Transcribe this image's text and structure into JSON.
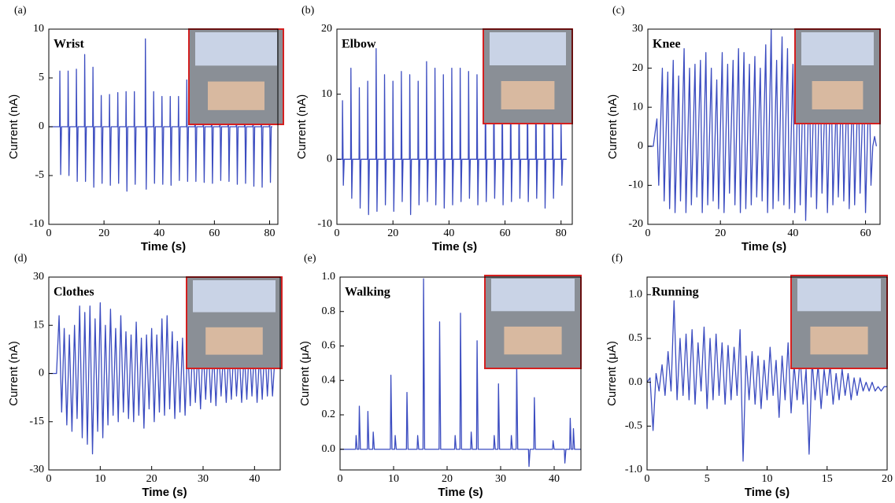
{
  "chart_data": [
    {
      "type": "line",
      "panel": "(a)",
      "title": "Wrist",
      "x_label": "Time  (s)",
      "y_label": "Current  (nA)",
      "color": "#3b4cc0",
      "xlim": [
        0,
        83
      ],
      "ylim": [
        -10,
        10
      ],
      "xticks": [
        0,
        20,
        40,
        60,
        80
      ],
      "yticks": [
        -10,
        -5,
        0,
        5,
        10
      ],
      "x": [
        0,
        3.9,
        4,
        4.3,
        4.6,
        6.9,
        7,
        7.3,
        7.6,
        9.9,
        10,
        10.3,
        10.6,
        12.9,
        13,
        13.3,
        13.6,
        15.9,
        16,
        16.3,
        16.6,
        18.9,
        19,
        19.3,
        19.6,
        21.9,
        22,
        22.3,
        22.6,
        24.9,
        25,
        25.3,
        25.6,
        27.9,
        28,
        28.3,
        28.6,
        30.9,
        31,
        31.3,
        31.6,
        34.9,
        35,
        35.3,
        35.6,
        37.9,
        38,
        38.3,
        38.6,
        40.9,
        41,
        41.3,
        41.6,
        43.9,
        44,
        44.3,
        44.6,
        46.9,
        47,
        47.3,
        47.6,
        49.9,
        50,
        50.3,
        50.6,
        52.9,
        53,
        53.3,
        53.6,
        55.9,
        56,
        56.3,
        56.6,
        58.9,
        59,
        59.3,
        59.6,
        61.9,
        62,
        62.3,
        62.6,
        64.9,
        65,
        65.3,
        65.6,
        67.9,
        68,
        68.3,
        68.6,
        70.9,
        71,
        71.3,
        71.6,
        73.9,
        74,
        74.3,
        74.6,
        76.9,
        77,
        77.3,
        77.6,
        79.9,
        80,
        80.3,
        80.6,
        81
      ],
      "values": [
        0,
        0,
        5.7,
        -4.9,
        0,
        0,
        5.7,
        -5,
        0,
        0,
        5.9,
        -5.6,
        0,
        0,
        7.4,
        -5.6,
        0,
        0,
        6.1,
        -6.2,
        0,
        0,
        3.2,
        -5.8,
        0,
        0,
        3.3,
        -6,
        0,
        0,
        3.5,
        -5.8,
        0,
        0,
        3.6,
        -6.6,
        0,
        0,
        3.6,
        -5.9,
        0,
        0,
        9,
        -6.4,
        0,
        0,
        3.6,
        -5.8,
        0,
        0,
        3.1,
        -5.9,
        0,
        0,
        3.1,
        -6,
        0,
        0,
        3.1,
        -5.5,
        0,
        0,
        4.8,
        -5.6,
        0,
        0,
        3,
        -5.6,
        0,
        0,
        3,
        -5.7,
        0,
        0,
        3,
        -5.8,
        0,
        0,
        3,
        -5.5,
        0,
        0,
        3,
        -5.6,
        0,
        0,
        3,
        -5.9,
        0,
        0,
        3,
        -5.8,
        0,
        0,
        3,
        -6.1,
        0,
        0,
        3,
        -6.2,
        0,
        0,
        3,
        -5.7,
        0,
        0
      ]
    },
    {
      "type": "line",
      "panel": "(b)",
      "title": "Elbow",
      "x_label": "Time (s)",
      "y_label": "Current  (nA)",
      "color": "#3b4cc0",
      "xlim": [
        0,
        84
      ],
      "ylim": [
        -10,
        20
      ],
      "xticks": [
        0,
        20,
        40,
        60,
        80
      ],
      "yticks": [
        -10,
        0,
        10,
        20
      ],
      "x": [
        0,
        1.9,
        2,
        2.3,
        2.6,
        4.9,
        5,
        5.3,
        5.6,
        7.9,
        8,
        8.3,
        8.6,
        10.9,
        11,
        11.3,
        11.6,
        13.9,
        14,
        14.3,
        14.6,
        16.9,
        17,
        17.3,
        17.6,
        19.9,
        20,
        20.3,
        20.6,
        22.9,
        23,
        23.3,
        23.6,
        25.9,
        26,
        26.3,
        26.6,
        28.9,
        29,
        29.3,
        29.6,
        31.9,
        32,
        32.3,
        32.6,
        34.9,
        35,
        35.3,
        35.6,
        37.9,
        38,
        38.3,
        38.6,
        40.9,
        41,
        41.3,
        41.6,
        43.9,
        44,
        44.3,
        44.6,
        46.9,
        47,
        47.3,
        47.6,
        49.9,
        50,
        50.3,
        50.6,
        52.9,
        53,
        53.3,
        53.6,
        55.9,
        56,
        56.3,
        56.6,
        58.9,
        59,
        59.3,
        59.6,
        61.9,
        62,
        62.3,
        62.6,
        64.9,
        65,
        65.3,
        65.6,
        67.9,
        68,
        68.3,
        68.6,
        70.9,
        71,
        71.3,
        71.6,
        73.9,
        74,
        74.3,
        74.6,
        76.9,
        77,
        77.3,
        77.6,
        79.9,
        80,
        80.3,
        80.6,
        82
      ],
      "values": [
        0,
        0,
        9,
        -4,
        0,
        0,
        14,
        -6,
        0,
        0,
        11,
        -7.5,
        0,
        0,
        12,
        -8.5,
        0,
        0,
        17,
        -8,
        0,
        0,
        13,
        -7,
        0,
        0,
        12,
        -8,
        0,
        0,
        13.5,
        -6.5,
        0,
        0,
        13,
        -8.5,
        0,
        0,
        12,
        -7,
        0,
        0,
        15,
        -6.5,
        0,
        0,
        14,
        -7,
        0,
        0,
        13,
        -7.5,
        0,
        0,
        14,
        -7,
        0,
        0,
        14,
        -6.5,
        0,
        0,
        13.5,
        -6,
        0,
        0,
        13,
        -7,
        0,
        0,
        13,
        -6.5,
        0,
        0,
        14,
        -6,
        0,
        0,
        13,
        -7,
        0,
        0,
        13,
        -6.5,
        0,
        0,
        13,
        -6,
        0,
        0,
        13,
        -6.5,
        0,
        0,
        13,
        -6,
        0,
        0,
        13,
        -7.5,
        0,
        0,
        9,
        -6,
        0,
        0,
        6,
        -4,
        0,
        0
      ]
    },
    {
      "type": "line",
      "panel": "(c)",
      "title": "Knee",
      "x_label": "Time (s)",
      "y_label": "Current  (nA)",
      "color": "#3b4cc0",
      "xlim": [
        0,
        64
      ],
      "ylim": [
        -20,
        30
      ],
      "xticks": [
        0,
        20,
        40,
        60
      ],
      "yticks": [
        -20,
        -10,
        0,
        10,
        20,
        30
      ],
      "x": [
        0,
        1.5,
        2.5,
        3,
        4,
        4.5,
        5.5,
        6,
        7,
        7.5,
        8.5,
        9,
        10,
        10.5,
        11.5,
        12,
        13,
        13.5,
        14.5,
        15,
        16,
        16.5,
        17.5,
        18,
        19,
        19.5,
        20.5,
        21,
        22,
        22.5,
        23.5,
        24,
        25,
        25.5,
        26.5,
        27,
        28,
        28.5,
        29.5,
        30,
        31,
        31.5,
        32.5,
        33,
        34,
        34.5,
        35.5,
        36,
        37,
        37.5,
        38.5,
        39,
        40,
        40.5,
        41.5,
        42,
        43,
        43.5,
        44.5,
        45,
        46,
        46.5,
        47.5,
        48,
        49,
        49.5,
        50.5,
        51,
        52,
        52.5,
        53.5,
        54,
        55,
        55.5,
        56.5,
        57,
        58,
        58.5,
        59.5,
        60,
        61,
        61.5,
        62,
        62.5,
        63
      ],
      "values": [
        0,
        0,
        7,
        -10,
        20,
        -14,
        19,
        -16,
        22,
        -17,
        18,
        -14,
        25,
        -17,
        20,
        -15,
        21,
        -13,
        22,
        -17,
        24,
        -15,
        20,
        -14,
        17,
        -16,
        24,
        -17,
        21,
        -12,
        22,
        -15,
        25,
        -17,
        24,
        -16,
        21,
        -15,
        23,
        -13,
        20,
        -14,
        26,
        -17,
        30,
        -16,
        22,
        -14,
        28,
        -15,
        25,
        -16,
        21,
        -17,
        20,
        -15,
        24,
        -19,
        19,
        -13,
        22,
        -16,
        23,
        -12,
        17,
        -17,
        22,
        -15,
        13,
        -13,
        19,
        -14,
        18,
        -16,
        17,
        -15,
        18,
        -12,
        18,
        -17,
        19,
        -10,
        0,
        2.5,
        0
      ]
    },
    {
      "type": "line",
      "panel": "(d)",
      "title": "Clothes",
      "x_label": "Time (s)",
      "y_label": "Current  (nA)",
      "color": "#3b4cc0",
      "xlim": [
        0,
        45
      ],
      "ylim": [
        -30,
        30
      ],
      "xticks": [
        0,
        10,
        20,
        30,
        40
      ],
      "yticks": [
        -30,
        -15,
        0,
        15,
        30
      ],
      "x": [
        0,
        1.5,
        2,
        2.5,
        3,
        3.5,
        4,
        4.5,
        5,
        5.5,
        6,
        6.5,
        7,
        7.5,
        8,
        8.5,
        9,
        9.5,
        10,
        10.5,
        11,
        11.5,
        12,
        12.5,
        13,
        13.5,
        14,
        14.5,
        15,
        15.5,
        16,
        16.5,
        17,
        17.5,
        18,
        18.5,
        19,
        19.5,
        20,
        20.5,
        21,
        21.5,
        22,
        22.5,
        23,
        23.5,
        24,
        24.5,
        25,
        25.5,
        26,
        26.5,
        27,
        27.5,
        28,
        28.5,
        29,
        29.5,
        30,
        30.5,
        31,
        31.5,
        32,
        32.5,
        33,
        33.5,
        34,
        34.5,
        35,
        35.5,
        36,
        36.5,
        37,
        37.5,
        38,
        38.5,
        39,
        39.5,
        40,
        40.5,
        41,
        41.5,
        42,
        42.5,
        43,
        43.5,
        44
      ],
      "values": [
        0,
        0,
        18,
        -12,
        14,
        -16,
        12,
        -18,
        15,
        -14,
        21,
        -20,
        19,
        -22,
        21,
        -25,
        17,
        -18,
        22,
        -20,
        15,
        -16,
        20,
        -13,
        14,
        -15,
        18,
        -12,
        13,
        -14,
        12,
        -15,
        16,
        -13,
        11,
        -17,
        12,
        -11,
        14,
        -15,
        12,
        -12,
        17,
        -13,
        18,
        -11,
        13,
        -14,
        10,
        -12,
        11,
        -13,
        9,
        -10,
        10,
        -9,
        8,
        -11,
        9,
        -8,
        10,
        -9,
        8,
        -10,
        9,
        -7,
        8,
        -9,
        7,
        -8,
        9,
        -7,
        8,
        -9,
        7,
        -8,
        9,
        -7,
        8,
        -9,
        7,
        -8,
        9,
        -7,
        8,
        -7,
        6
      ]
    },
    {
      "type": "line",
      "panel": "(e)",
      "title": "Walking",
      "x_label": "Time (s)",
      "y_label": "Current  (μA)",
      "color": "#3b4cc0",
      "xlim": [
        0,
        45
      ],
      "ylim": [
        -0.12,
        1.0
      ],
      "xticks": [
        0,
        10,
        20,
        30,
        40
      ],
      "yticks": [
        {
          "value": 0,
          "label": "0.0"
        },
        0.2,
        0.4,
        0.6,
        0.8,
        {
          "value": 1,
          "label": "1.0"
        }
      ],
      "x": [
        0,
        2.9,
        3,
        3.2,
        3.5,
        3.6,
        3.8,
        5.1,
        5.2,
        5.4,
        6.1,
        6.2,
        6.4,
        9.4,
        9.5,
        9.7,
        10.2,
        10.3,
        10.5,
        12.4,
        12.5,
        12.7,
        14.4,
        14.5,
        14.7,
        15.5,
        15.6,
        15.8,
        18.5,
        18.6,
        18.8,
        21.4,
        21.5,
        21.7,
        22.4,
        22.5,
        22.7,
        24.4,
        24.5,
        24.7,
        25.5,
        25.6,
        25.8,
        28.7,
        28.8,
        29,
        29.5,
        29.6,
        29.8,
        31.9,
        32,
        32.2,
        32.9,
        33,
        33.2,
        35.2,
        35.3,
        35.5,
        36.2,
        36.3,
        36.5,
        39.7,
        39.8,
        40,
        41.9,
        42,
        42.2,
        42.9,
        43,
        43.2,
        43.5,
        43.6,
        43.8,
        45
      ],
      "values": [
        0,
        0,
        0.08,
        0,
        0,
        0.25,
        0,
        0,
        0.22,
        0,
        0,
        0.1,
        0,
        0,
        0.43,
        0,
        0,
        0.08,
        0,
        0,
        0.33,
        0,
        0,
        0.08,
        0,
        0,
        0.99,
        0,
        0,
        0.74,
        0,
        0,
        0.08,
        0,
        0,
        0.79,
        0,
        0,
        0.1,
        0,
        0,
        0.63,
        0,
        0,
        0.08,
        0,
        0,
        0.38,
        0,
        0,
        0.08,
        0,
        0,
        0.49,
        0,
        0,
        -0.1,
        0,
        0,
        0.3,
        0,
        0,
        0.05,
        0,
        0,
        -0.08,
        0,
        0,
        0.18,
        0,
        0,
        0.12,
        0,
        0
      ]
    },
    {
      "type": "line",
      "panel": "(f)",
      "title": "Running",
      "x_label": "Time (s)",
      "y_label": "Current  (μA)",
      "color": "#3b4cc0",
      "xlim": [
        0,
        20
      ],
      "ylim": [
        -1.0,
        1.2
      ],
      "xticks": [
        0,
        5,
        10,
        15,
        20
      ],
      "yticks": [
        {
          "value": -1,
          "label": "-1.0"
        },
        -0.5,
        {
          "value": 0,
          "label": "0.0"
        },
        0.5,
        {
          "value": 1,
          "label": "1.0"
        }
      ],
      "x": [
        0,
        0.25,
        0.5,
        0.75,
        1,
        1.25,
        1.5,
        1.75,
        2,
        2.25,
        2.5,
        2.75,
        3,
        3.25,
        3.5,
        3.75,
        4,
        4.25,
        4.5,
        4.75,
        5,
        5.25,
        5.5,
        5.75,
        6,
        6.25,
        6.5,
        6.75,
        7,
        7.25,
        7.5,
        7.75,
        8,
        8.25,
        8.5,
        8.75,
        9,
        9.25,
        9.5,
        9.75,
        10,
        10.25,
        10.5,
        10.75,
        11,
        11.25,
        11.5,
        11.75,
        12,
        12.25,
        12.5,
        12.75,
        13,
        13.25,
        13.5,
        13.75,
        14,
        14.25,
        14.5,
        14.75,
        15,
        15.25,
        15.5,
        15.75,
        16,
        16.25,
        16.5,
        16.75,
        17,
        17.25,
        17.5,
        17.75,
        18,
        18.25,
        18.5,
        18.75,
        19,
        19.25,
        19.5,
        19.75,
        20
      ],
      "values": [
        0,
        0.05,
        -0.55,
        0.1,
        -0.1,
        0.2,
        -0.15,
        0.35,
        -0.1,
        0.93,
        -0.2,
        0.5,
        -0.15,
        0.55,
        -0.2,
        0.6,
        -0.25,
        0.45,
        -0.1,
        0.63,
        -0.3,
        0.5,
        -0.2,
        0.55,
        -0.15,
        0.45,
        -0.25,
        0.42,
        -0.2,
        0.4,
        -0.15,
        0.6,
        -0.9,
        0.3,
        -0.2,
        0.35,
        -0.25,
        0.3,
        -0.3,
        0.25,
        -0.2,
        0.4,
        -0.15,
        0.25,
        -0.4,
        0.3,
        -0.2,
        0.45,
        -0.35,
        0.2,
        -0.2,
        0.3,
        -0.25,
        0.15,
        -0.82,
        0.25,
        -0.2,
        0.2,
        -0.3,
        0.15,
        -0.15,
        0.2,
        -0.25,
        0.1,
        -0.2,
        0.15,
        -0.15,
        0.1,
        -0.2,
        0.05,
        -0.15,
        0.05,
        -0.1,
        0,
        -0.1,
        0,
        -0.1,
        -0.05,
        -0.1,
        -0.05,
        -0.05
      ]
    }
  ]
}
